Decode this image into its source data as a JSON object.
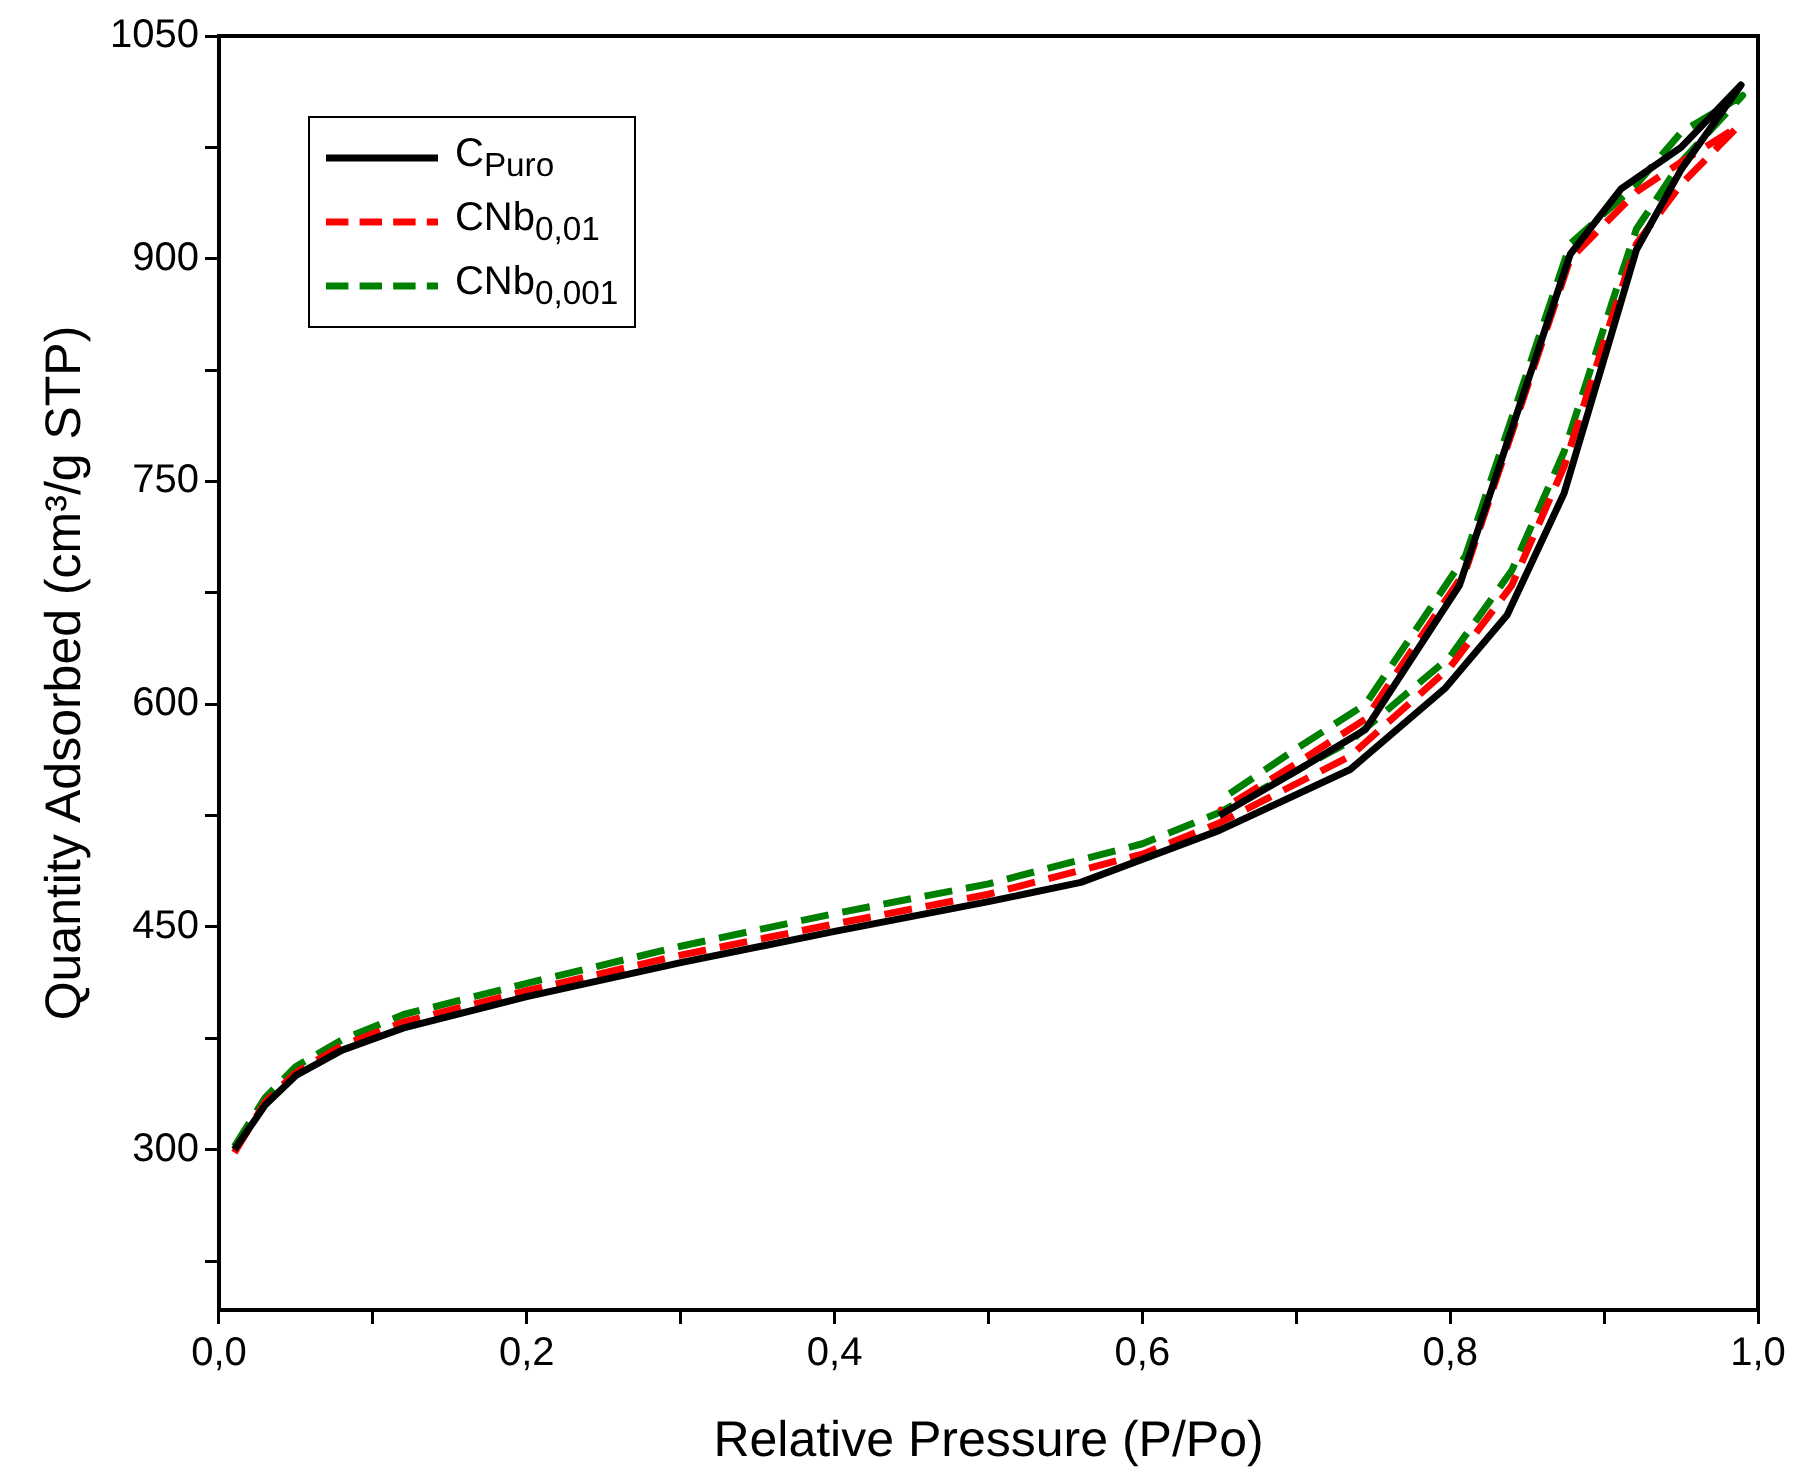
{
  "chart_data": {
    "type": "line",
    "xlabel": "Relative Pressure (P/Po)",
    "ylabel": "Quantity Adsorbed (cm³/g STP)",
    "xlim": [
      0,
      1
    ],
    "ylim": [
      192,
      1050
    ],
    "xticks": [
      {
        "value": 0,
        "label": "0,0"
      },
      {
        "value": 0.1,
        "label": null
      },
      {
        "value": 0.2,
        "label": "0,2"
      },
      {
        "value": 0.3,
        "label": null
      },
      {
        "value": 0.4,
        "label": "0,4"
      },
      {
        "value": 0.5,
        "label": null
      },
      {
        "value": 0.6,
        "label": "0,6"
      },
      {
        "value": 0.7,
        "label": null
      },
      {
        "value": 0.8,
        "label": "0,8"
      },
      {
        "value": 0.9,
        "label": null
      },
      {
        "value": 1,
        "label": "1,0"
      }
    ],
    "yticks": [
      {
        "value": 225,
        "label": null
      },
      300,
      {
        "value": 375,
        "label": null
      },
      450,
      {
        "value": 525,
        "label": null
      },
      600,
      {
        "value": 675,
        "label": null
      },
      750,
      {
        "value": 825,
        "label": null
      },
      900,
      {
        "value": 975,
        "label": null
      },
      1050
    ],
    "grid": false,
    "legend": "top left",
    "marker": "none",
    "series": [
      {
        "name": "C$_{Puro}$",
        "color": "#000000",
        "line_style": "solid",
        "x": [
          0.01,
          0.03,
          0.05,
          0.08,
          0.12,
          0.2,
          0.3,
          0.4,
          0.5,
          0.56,
          0.65,
          0.735,
          0.797,
          0.837,
          0.874,
          0.905,
          0.921,
          0.95,
          0.989,
          0.95,
          0.911,
          0.878,
          0.806,
          0.745,
          0.7,
          0.65
        ],
        "values": [
          300,
          330,
          350,
          367,
          382,
          403,
          426,
          447,
          467,
          480,
          515,
          556,
          611,
          660,
          742,
          850,
          906,
          960,
          1017,
          975,
          947,
          903,
          680,
          583,
          555,
          525
        ]
      },
      {
        "name": "CNb$_{0,01}$",
        "color": "#ff0000",
        "line_style": "dashed",
        "x": [
          0.01,
          0.03,
          0.05,
          0.08,
          0.12,
          0.2,
          0.3,
          0.4,
          0.5,
          0.6,
          0.65,
          0.735,
          0.8,
          0.84,
          0.874,
          0.905,
          0.921,
          0.95,
          0.987,
          0.95,
          0.921,
          0.878,
          0.81,
          0.745,
          0.7,
          0.65
        ],
        "values": [
          298,
          332,
          352,
          370,
          386,
          407,
          431,
          452,
          472,
          499,
          520,
          565,
          625,
          680,
          760,
          860,
          910,
          950,
          989,
          965,
          945,
          900,
          690,
          590,
          560,
          528
        ]
      },
      {
        "name": "CNb$_{0,001}$",
        "color": "#008000",
        "line_style": "dashed",
        "x": [
          0.01,
          0.03,
          0.05,
          0.08,
          0.12,
          0.2,
          0.3,
          0.4,
          0.5,
          0.6,
          0.65,
          0.735,
          0.8,
          0.84,
          0.874,
          0.905,
          0.921,
          0.95,
          0.99,
          0.95,
          0.921,
          0.878,
          0.81,
          0.745,
          0.7,
          0.65
        ],
        "values": [
          302,
          335,
          356,
          374,
          391,
          412,
          437,
          459,
          479,
          506,
          527,
          575,
          632,
          690,
          770,
          870,
          920,
          965,
          1010,
          985,
          950,
          910,
          700,
          600,
          570,
          535
        ]
      }
    ]
  }
}
